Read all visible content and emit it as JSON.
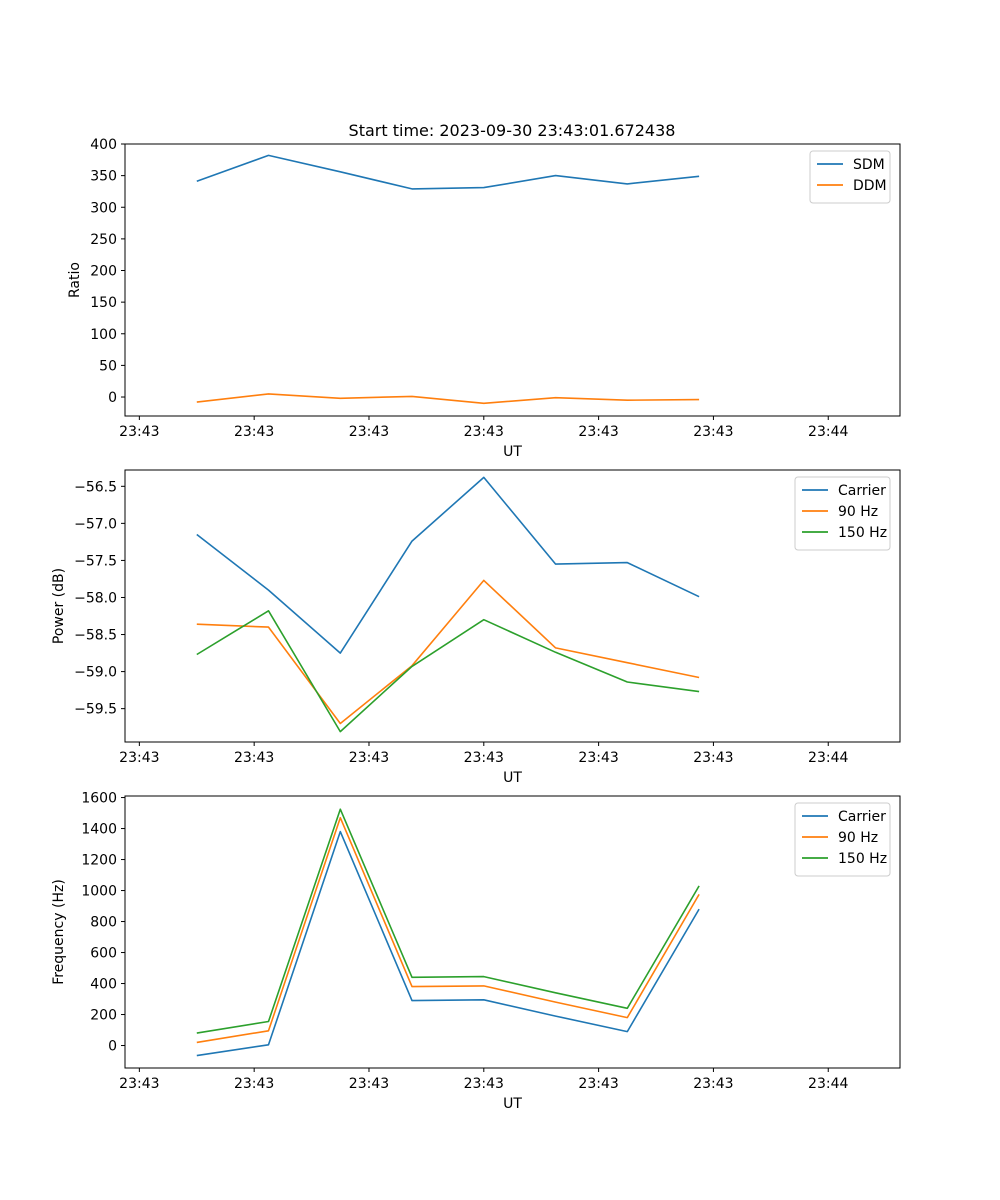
{
  "figure_title": "Start time: 2023-09-30 23:43:01.672438",
  "colors": {
    "blue": "#1f77b4",
    "orange": "#ff7f0e",
    "green": "#2ca02c",
    "axis": "#000000",
    "legend_border": "#cccccc"
  },
  "chart_data": [
    {
      "type": "line",
      "title": "Start time: 2023-09-30 23:43:01.672438",
      "xlabel": "UT",
      "ylabel": "Ratio",
      "xlim": [
        0,
        10.8
      ],
      "ylim": [
        -30,
        400
      ],
      "x": [
        1,
        2,
        3,
        4,
        5,
        6,
        7,
        8
      ],
      "xticks": [
        0.2,
        1.8,
        3.4,
        5.0,
        6.6,
        8.2,
        9.8
      ],
      "xtick_labels": [
        "23:43",
        "23:43",
        "23:43",
        "23:43",
        "23:43",
        "23:43",
        "23:44"
      ],
      "yticks": [
        0,
        50,
        100,
        150,
        200,
        250,
        300,
        350,
        400
      ],
      "ytick_labels": [
        "0",
        "50",
        "100",
        "150",
        "200",
        "250",
        "300",
        "350",
        "400"
      ],
      "legend_position": "top-right",
      "grid": false,
      "series": [
        {
          "name": "SDM",
          "color": "#1f77b4",
          "values": [
            341,
            382,
            356,
            329,
            331,
            350,
            337,
            349
          ]
        },
        {
          "name": "DDM",
          "color": "#ff7f0e",
          "values": [
            -8,
            5,
            -2,
            1,
            -10,
            -1,
            -5,
            -4
          ]
        }
      ]
    },
    {
      "type": "line",
      "xlabel": "UT",
      "ylabel": "Power (dB)",
      "xlim": [
        0,
        10.8
      ],
      "ylim": [
        -59.95,
        -56.28
      ],
      "x": [
        1,
        2,
        3,
        4,
        5,
        6,
        7,
        8
      ],
      "xticks": [
        0.2,
        1.8,
        3.4,
        5.0,
        6.6,
        8.2,
        9.8
      ],
      "xtick_labels": [
        "23:43",
        "23:43",
        "23:43",
        "23:43",
        "23:43",
        "23:43",
        "23:44"
      ],
      "yticks": [
        -59.5,
        -59.0,
        -58.5,
        -58.0,
        -57.5,
        -57.0,
        -56.5
      ],
      "ytick_labels": [
        "−59.5",
        "−59.0",
        "−58.5",
        "−58.0",
        "−57.5",
        "−57.0",
        "−56.5"
      ],
      "legend_position": "top-right",
      "grid": false,
      "series": [
        {
          "name": "Carrier",
          "color": "#1f77b4",
          "values": [
            -57.15,
            -57.9,
            -58.75,
            -57.24,
            -56.38,
            -57.55,
            -57.53,
            -57.99
          ]
        },
        {
          "name": "90 Hz",
          "color": "#ff7f0e",
          "values": [
            -58.36,
            -58.4,
            -59.7,
            -58.92,
            -57.77,
            -58.68,
            -58.88,
            -59.08
          ]
        },
        {
          "name": "150 Hz",
          "color": "#2ca02c",
          "values": [
            -58.77,
            -58.18,
            -59.81,
            -58.93,
            -58.3,
            -58.74,
            -59.14,
            -59.27
          ]
        }
      ]
    },
    {
      "type": "line",
      "xlabel": "UT",
      "ylabel": "Frequency (Hz)",
      "xlim": [
        0,
        10.8
      ],
      "ylim": [
        -145,
        1610
      ],
      "x": [
        1,
        2,
        3,
        4,
        5,
        6,
        7,
        8
      ],
      "xticks": [
        0.2,
        1.8,
        3.4,
        5.0,
        6.6,
        8.2,
        9.8
      ],
      "xtick_labels": [
        "23:43",
        "23:43",
        "23:43",
        "23:43",
        "23:43",
        "23:43",
        "23:44"
      ],
      "yticks": [
        0,
        200,
        400,
        600,
        800,
        1000,
        1200,
        1400,
        1600
      ],
      "ytick_labels": [
        "0",
        "200",
        "400",
        "600",
        "800",
        "1000",
        "1200",
        "1400",
        "1600"
      ],
      "legend_position": "top-right",
      "grid": false,
      "series": [
        {
          "name": "Carrier",
          "color": "#1f77b4",
          "values": [
            -65,
            5,
            1380,
            290,
            295,
            190,
            90,
            880
          ]
        },
        {
          "name": "90 Hz",
          "color": "#ff7f0e",
          "values": [
            20,
            95,
            1470,
            380,
            385,
            280,
            180,
            975
          ]
        },
        {
          "name": "150 Hz",
          "color": "#2ca02c",
          "values": [
            80,
            155,
            1525,
            440,
            445,
            340,
            240,
            1030
          ]
        }
      ]
    }
  ]
}
